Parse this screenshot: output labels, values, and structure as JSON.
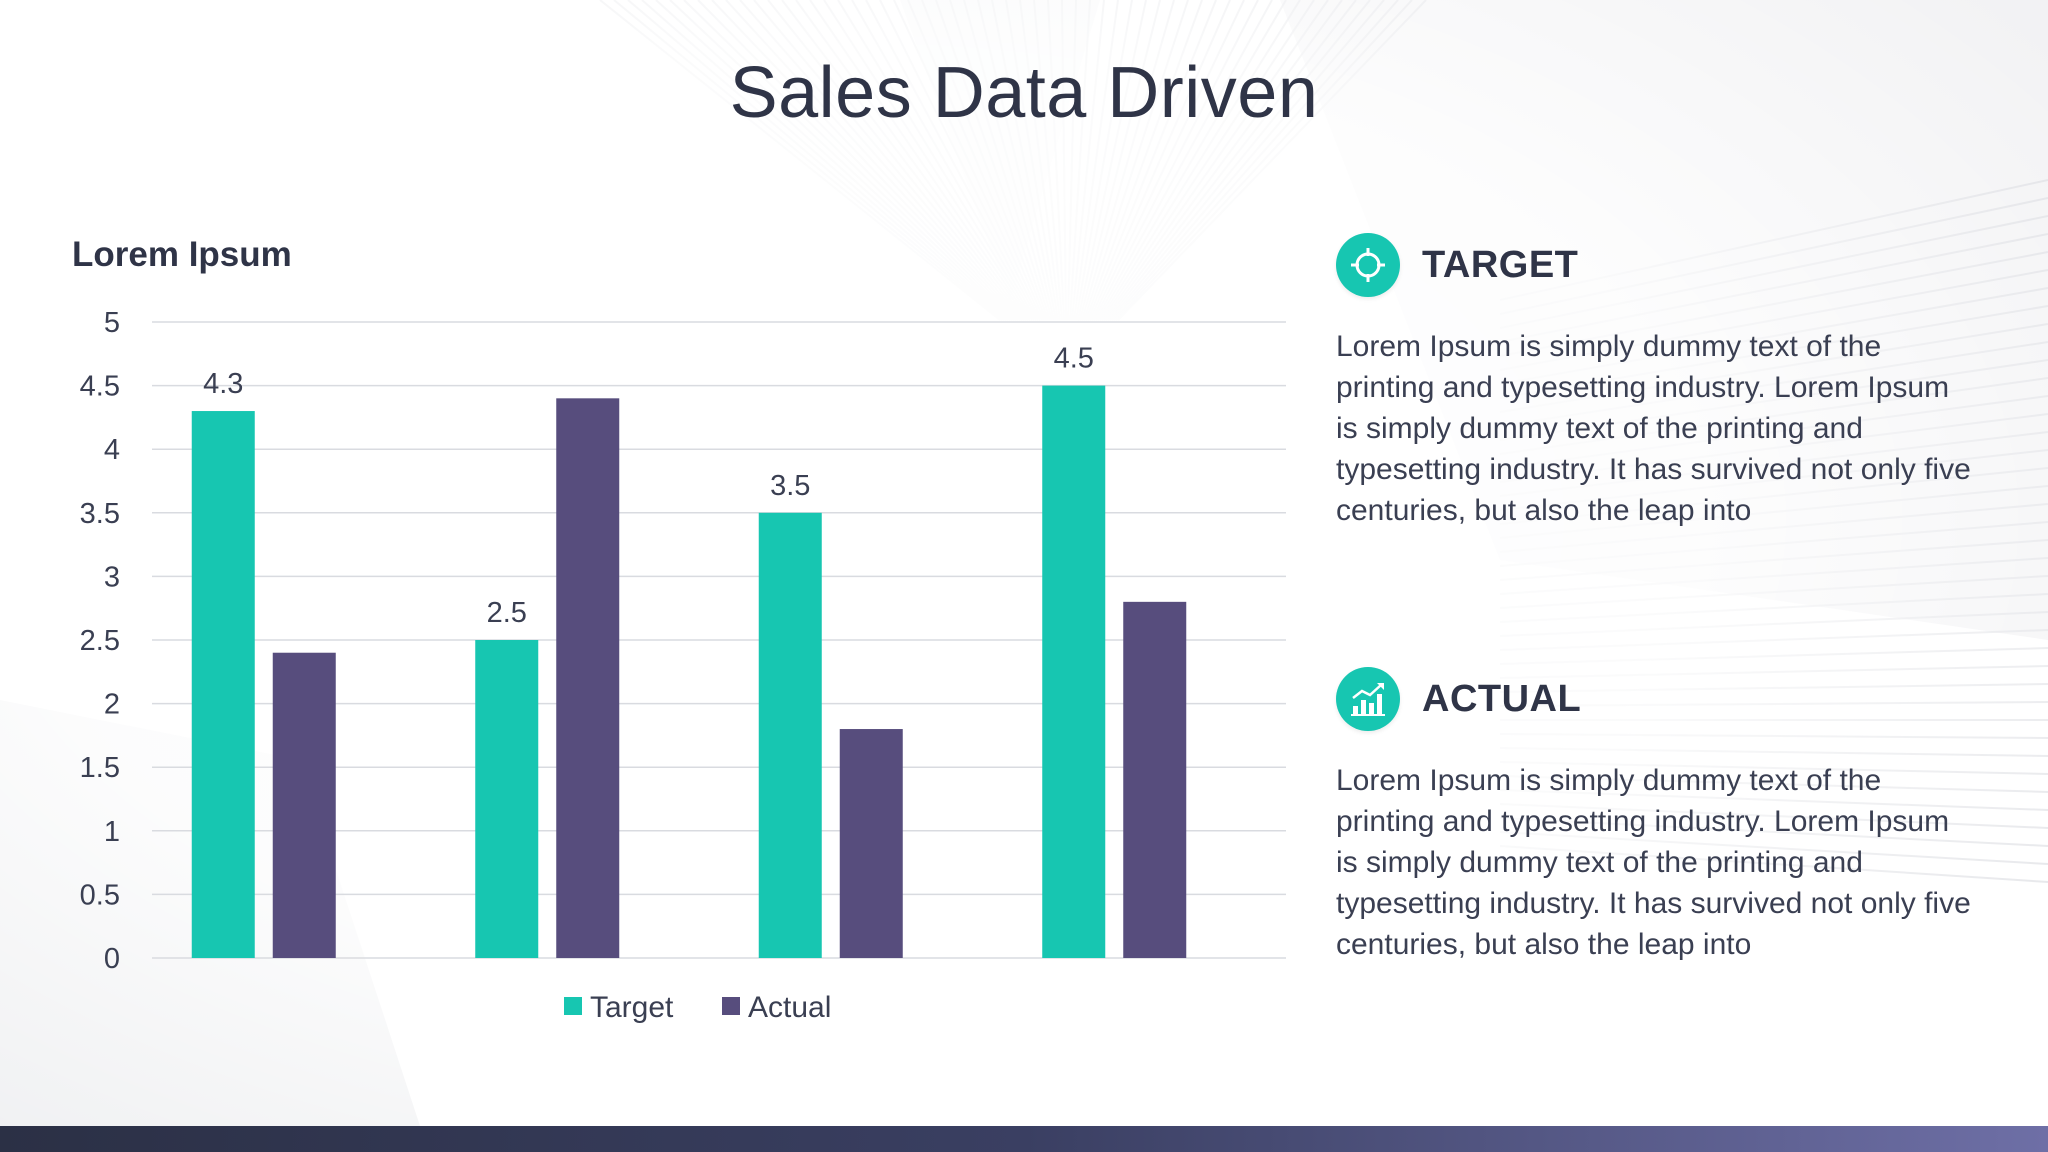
{
  "slide": {
    "title": "Sales Data Driven"
  },
  "colors": {
    "target": "#17c6b1",
    "actual": "#574d7d",
    "text": "#2f3447"
  },
  "panels": [
    {
      "icon": "target-crosshair-icon",
      "title": "TARGET",
      "body": "Lorem Ipsum is simply dummy text of the printing and typesetting industry. Lorem Ipsum is simply dummy text of the printing and typesetting industry. It has survived not only five centuries, but also the leap into"
    },
    {
      "icon": "growth-chart-icon",
      "title": "ACTUAL",
      "body": "Lorem Ipsum is simply dummy text of the printing and typesetting industry. Lorem Ipsum is simply dummy text of the printing and typesetting industry. It has survived not only five centuries, but also the leap into"
    }
  ],
  "chart_data": {
    "type": "bar",
    "title": "Lorem Ipsum",
    "categories": [
      "",
      "",
      "",
      ""
    ],
    "series": [
      {
        "name": "Target",
        "values": [
          4.3,
          2.5,
          3.5,
          4.5
        ],
        "color": "#17c6b1",
        "data_labels": [
          "4.3",
          "2.5",
          "3.5",
          "4.5"
        ]
      },
      {
        "name": "Actual",
        "values": [
          2.4,
          4.4,
          1.8,
          2.8
        ],
        "color": "#574d7d",
        "data_labels": []
      }
    ],
    "ylim": [
      0,
      5
    ],
    "yticks": [
      "0",
      "0.5",
      "1",
      "1.5",
      "2",
      "2.5",
      "3",
      "3.5",
      "4",
      "4.5",
      "5"
    ],
    "grid": true,
    "legend": "bottom"
  }
}
